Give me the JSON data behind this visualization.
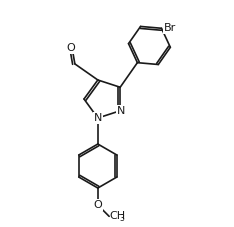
{
  "bg_color": "#ffffff",
  "line_color": "#1a1a1a",
  "line_width": 1.2,
  "font_size": 8.0,
  "font_size_sub": 5.5,
  "figsize": [
    2.34,
    2.27
  ],
  "dpi": 100,
  "xlim": [
    0,
    234
  ],
  "ylim": [
    0,
    227
  ]
}
